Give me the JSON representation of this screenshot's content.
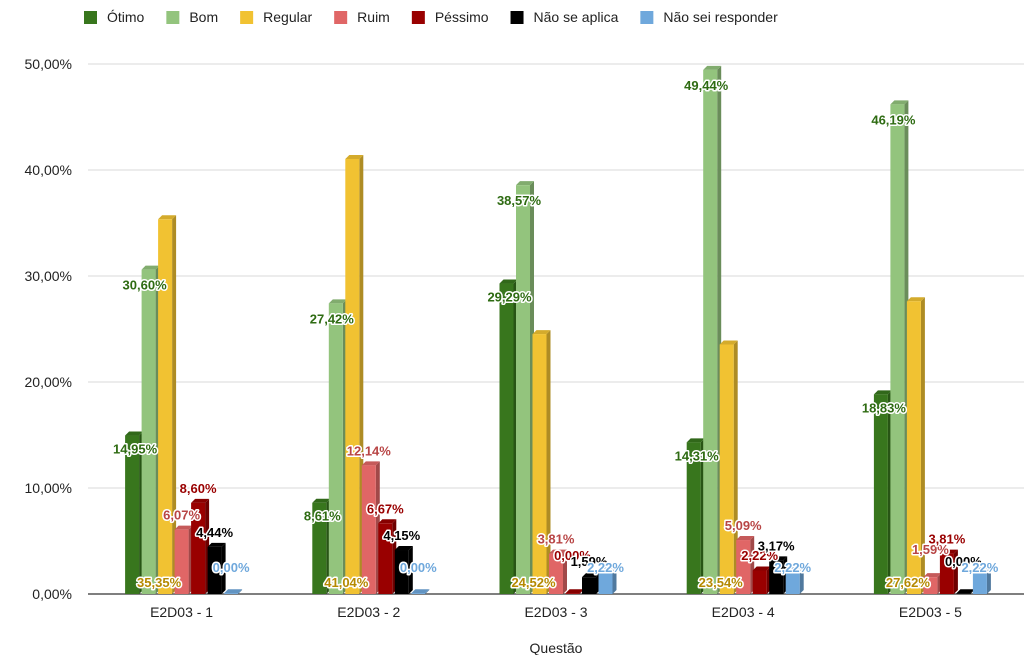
{
  "chart_data": {
    "type": "bar",
    "xlabel": "Questão",
    "ylabel": "",
    "title": "",
    "ylim": [
      0,
      50
    ],
    "yticks": [
      "0,00%",
      "10,00%",
      "20,00%",
      "30,00%",
      "40,00%",
      "50,00%"
    ],
    "yticks_values": [
      0,
      10,
      20,
      30,
      40,
      50
    ],
    "legend_position": "top",
    "grid": true,
    "categories": [
      "E2D03 - 1",
      "E2D03 - 2",
      "E2D03 - 3",
      "E2D03 - 4",
      "E2D03 - 5"
    ],
    "series": [
      {
        "name": "Ótimo",
        "color": "#38761d",
        "values": [
          14.95,
          8.61,
          29.29,
          14.31,
          18.83
        ],
        "labels": [
          "14,95%",
          "8,61%",
          "29,29%",
          "14,31%",
          "18,83%"
        ]
      },
      {
        "name": "Bom",
        "color": "#93c47d",
        "values": [
          30.6,
          27.42,
          38.57,
          49.44,
          46.19
        ],
        "labels": [
          "30,60%",
          "27,42%",
          "38,57%",
          "49,44%",
          "46,19%"
        ]
      },
      {
        "name": "Regular",
        "color": "#f1c232",
        "values": [
          35.35,
          41.04,
          24.52,
          23.54,
          27.62
        ],
        "labels": [
          "35,35%",
          "41,04%",
          "24,52%",
          "23,54%",
          "27,62%"
        ]
      },
      {
        "name": "Ruim",
        "color": "#e06666",
        "values": [
          6.07,
          12.14,
          3.81,
          5.09,
          1.59
        ],
        "labels": [
          "6,07%",
          "12,14%",
          "3,81%",
          "5,09%",
          "1,59%"
        ]
      },
      {
        "name": "Péssimo",
        "color": "#990000",
        "values": [
          8.6,
          6.67,
          0.0,
          2.22,
          3.81
        ],
        "labels": [
          "8,60%",
          "6,67%",
          "0,00%",
          "2,22%",
          "3,81%"
        ]
      },
      {
        "name": "Não se aplica",
        "color": "#000000",
        "values": [
          4.44,
          4.15,
          1.59,
          3.17,
          0.0
        ],
        "labels": [
          "4,44%",
          "4,15%",
          "1,59%",
          "3,17%",
          "0,00%"
        ]
      },
      {
        "name": "Não sei responder",
        "color": "#6fa8dc",
        "values": [
          0.0,
          0.0,
          2.22,
          2.22,
          2.22
        ],
        "labels": [
          "0,00%",
          "0,00%",
          "2,22%",
          "2,22%",
          "2,22%"
        ]
      }
    ]
  }
}
